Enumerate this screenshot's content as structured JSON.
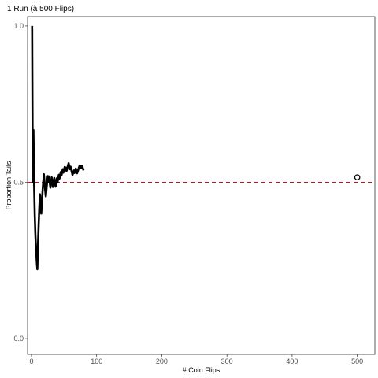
{
  "chart_data": {
    "type": "line",
    "title": "1 Run (à 500 Flips)",
    "xlabel": "# Coin Flips",
    "ylabel": "Proportion Tails",
    "xlim": [
      -6,
      527
    ],
    "ylim": [
      -0.05,
      1.03
    ],
    "x_ticks": [
      0,
      100,
      200,
      300,
      400,
      500
    ],
    "y_ticks": [
      0.0,
      0.5,
      1.0
    ],
    "x_tick_labels": [
      "0",
      "100",
      "200",
      "300",
      "400",
      "500"
    ],
    "y_tick_labels": [
      "0.0",
      "0.5",
      "1.0"
    ],
    "grid": false,
    "series": [
      {
        "x": [
          1,
          2,
          3,
          4,
          5,
          6,
          7,
          8,
          9,
          10,
          11,
          12,
          13,
          14,
          15,
          16,
          17,
          18,
          19,
          20,
          21,
          22,
          23,
          24,
          25,
          26,
          27,
          28,
          29,
          30,
          31,
          32,
          33,
          34,
          35,
          36,
          37,
          38,
          39,
          40,
          41,
          42,
          43,
          44,
          45,
          46,
          47,
          48,
          49,
          50,
          51,
          52,
          53,
          54,
          55,
          56,
          57,
          58,
          59,
          60,
          61,
          62,
          63,
          64,
          65,
          66,
          67,
          68,
          69,
          70,
          71,
          72,
          73,
          74,
          75,
          76,
          77,
          78,
          79,
          80
        ],
        "y": [
          1.0,
          0.5,
          0.667,
          0.5,
          0.4,
          0.333,
          0.286,
          0.25,
          0.222,
          0.3,
          0.364,
          0.417,
          0.462,
          0.429,
          0.4,
          0.438,
          0.471,
          0.5,
          0.526,
          0.5,
          0.476,
          0.455,
          0.478,
          0.5,
          0.52,
          0.5,
          0.519,
          0.5,
          0.483,
          0.5,
          0.516,
          0.5,
          0.485,
          0.5,
          0.514,
          0.5,
          0.486,
          0.5,
          0.513,
          0.5,
          0.512,
          0.524,
          0.512,
          0.523,
          0.533,
          0.522,
          0.532,
          0.542,
          0.531,
          0.54,
          0.549,
          0.538,
          0.547,
          0.537,
          0.545,
          0.554,
          0.561,
          0.552,
          0.542,
          0.55,
          0.541,
          0.532,
          0.524,
          0.531,
          0.538,
          0.53,
          0.537,
          0.544,
          0.536,
          0.529,
          0.535,
          0.542,
          0.548,
          0.554,
          0.547,
          0.553,
          0.545,
          0.551,
          0.544,
          0.538
        ]
      }
    ],
    "reference_line": {
      "y": 0.5,
      "style": "dashed",
      "color": "#c0141c"
    },
    "end_point": {
      "x": 500,
      "y": 0.516
    }
  }
}
